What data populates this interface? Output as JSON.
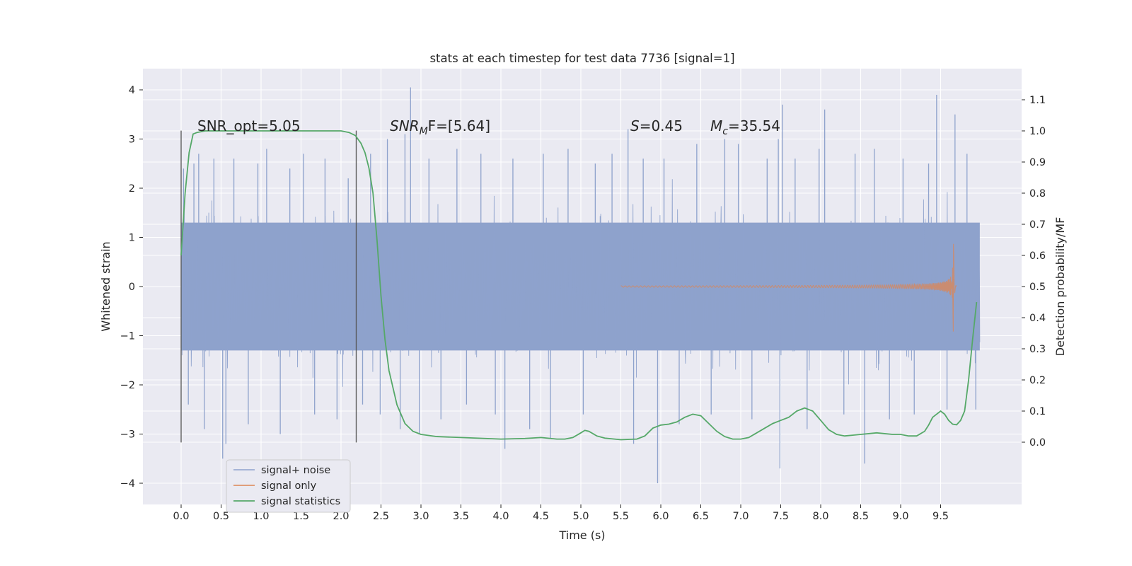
{
  "chart_data": {
    "type": "line",
    "title": "stats at each timestep for test data 7736 [signal=1]",
    "xlabel": "Time (s)",
    "ylabel_left": "Whitened strain",
    "ylabel_right": "Detection probability/MF",
    "xlim": [
      -0.49,
      10.49
    ],
    "ylim_left": [
      -4.45,
      4.45
    ],
    "ylim_right": [
      -0.2,
      1.2
    ],
    "x_ticks": [
      0.0,
      0.5,
      1.0,
      1.5,
      2.0,
      2.5,
      3.0,
      3.5,
      4.0,
      4.5,
      5.0,
      5.5,
      6.0,
      6.5,
      7.0,
      7.5,
      8.0,
      8.5,
      9.0,
      9.5
    ],
    "x_tick_labels": [
      "0.0",
      "0.5",
      "1.0",
      "1.5",
      "2.0",
      "2.5",
      "3.0",
      "3.5",
      "4.0",
      "4.5",
      "5.0",
      "5.5",
      "6.0",
      "6.5",
      "7.0",
      "7.5",
      "8.0",
      "8.5",
      "9.0",
      "9.5"
    ],
    "y_left_ticks": [
      4,
      3,
      2,
      1,
      0,
      -1,
      -2,
      -3,
      -4
    ],
    "y_left_tick_labels": [
      "4",
      "3",
      "2",
      "1",
      "0",
      "−1",
      "−2",
      "−3",
      "−4"
    ],
    "y_right_ticks": [
      1.1,
      1.0,
      0.9,
      0.8,
      0.7,
      0.6,
      0.5,
      0.4,
      0.3,
      0.2,
      0.1,
      0.0
    ],
    "y_right_tick_labels": [
      "1.1",
      "1.0",
      "0.9",
      "0.8",
      "0.7",
      "0.6",
      "0.5",
      "0.4",
      "0.3",
      "0.2",
      "0.1",
      "0.0"
    ],
    "vlines": [
      {
        "x": 0.0,
        "ymin": -3.17,
        "ymax": 3.17
      },
      {
        "x": 2.19,
        "ymin": -3.17,
        "ymax": 3.17
      }
    ],
    "annotations": {
      "snr_opt": "SNR_opt=5.05",
      "snr_mf_base": "SNR",
      "snr_mf_sub": "M",
      "snr_mf_rest": "F=[5.64]",
      "s_name": "S",
      "s_value": "=0.45",
      "mc_name": "M",
      "mc_sub": "c",
      "mc_value": "=35.54"
    },
    "series": [
      {
        "name": "signal+ noise",
        "axis": "left",
        "color": "#8ea2cc",
        "x_range": [
          0.0,
          9.99
        ],
        "core_band": [
          -1.3,
          1.3
        ],
        "spikes": [
          {
            "x": 0.03,
            "y": 2.4
          },
          {
            "x": 0.09,
            "y": -2.4
          },
          {
            "x": 0.16,
            "y": 2.5
          },
          {
            "x": 0.22,
            "y": 2.7
          },
          {
            "x": 0.29,
            "y": -2.9
          },
          {
            "x": 0.41,
            "y": 2.6
          },
          {
            "x": 0.52,
            "y": -3.5
          },
          {
            "x": 0.56,
            "y": -3.2
          },
          {
            "x": 0.66,
            "y": 2.6
          },
          {
            "x": 0.84,
            "y": -2.8
          },
          {
            "x": 0.96,
            "y": 2.5
          },
          {
            "x": 1.07,
            "y": 2.8
          },
          {
            "x": 1.24,
            "y": -3.0
          },
          {
            "x": 1.36,
            "y": 2.4
          },
          {
            "x": 1.53,
            "y": 2.7
          },
          {
            "x": 1.67,
            "y": -2.6
          },
          {
            "x": 1.8,
            "y": 2.6
          },
          {
            "x": 1.95,
            "y": -2.7
          },
          {
            "x": 2.09,
            "y": 2.2
          },
          {
            "x": 2.27,
            "y": -2.4
          },
          {
            "x": 2.37,
            "y": 2.7
          },
          {
            "x": 2.49,
            "y": -2.6
          },
          {
            "x": 2.58,
            "y": 3.0
          },
          {
            "x": 2.74,
            "y": -2.9
          },
          {
            "x": 2.8,
            "y": 3.1
          },
          {
            "x": 2.87,
            "y": 4.05
          },
          {
            "x": 2.98,
            "y": -3.0
          },
          {
            "x": 3.1,
            "y": 2.6
          },
          {
            "x": 3.25,
            "y": -2.7
          },
          {
            "x": 3.45,
            "y": 2.8
          },
          {
            "x": 3.57,
            "y": -2.4
          },
          {
            "x": 3.75,
            "y": 2.7
          },
          {
            "x": 3.93,
            "y": -2.6
          },
          {
            "x": 4.05,
            "y": -3.3
          },
          {
            "x": 4.15,
            "y": 2.6
          },
          {
            "x": 4.36,
            "y": -2.9
          },
          {
            "x": 4.53,
            "y": 2.7
          },
          {
            "x": 4.62,
            "y": -3.1
          },
          {
            "x": 4.84,
            "y": 2.8
          },
          {
            "x": 5.03,
            "y": -2.6
          },
          {
            "x": 5.18,
            "y": 2.5
          },
          {
            "x": 5.39,
            "y": 2.7
          },
          {
            "x": 5.59,
            "y": 3.2
          },
          {
            "x": 5.66,
            "y": -3.2
          },
          {
            "x": 5.78,
            "y": 2.6
          },
          {
            "x": 5.96,
            "y": -4.0
          },
          {
            "x": 6.04,
            "y": 2.6
          },
          {
            "x": 6.23,
            "y": -2.8
          },
          {
            "x": 6.45,
            "y": 2.9
          },
          {
            "x": 6.63,
            "y": -2.6
          },
          {
            "x": 6.8,
            "y": 3.0
          },
          {
            "x": 6.97,
            "y": 2.9
          },
          {
            "x": 7.14,
            "y": -2.7
          },
          {
            "x": 7.33,
            "y": 2.6
          },
          {
            "x": 7.47,
            "y": 3.0
          },
          {
            "x": 7.52,
            "y": 3.7
          },
          {
            "x": 7.49,
            "y": -3.7
          },
          {
            "x": 7.68,
            "y": 2.6
          },
          {
            "x": 7.83,
            "y": -2.9
          },
          {
            "x": 7.98,
            "y": 2.8
          },
          {
            "x": 8.05,
            "y": 3.6
          },
          {
            "x": 8.29,
            "y": -2.6
          },
          {
            "x": 8.43,
            "y": 2.7
          },
          {
            "x": 8.55,
            "y": -3.6
          },
          {
            "x": 8.67,
            "y": 2.8
          },
          {
            "x": 8.86,
            "y": -2.7
          },
          {
            "x": 9.03,
            "y": 2.6
          },
          {
            "x": 9.17,
            "y": -2.6
          },
          {
            "x": 9.35,
            "y": 2.5
          },
          {
            "x": 9.45,
            "y": 3.9
          },
          {
            "x": 9.58,
            "y": -2.5
          },
          {
            "x": 9.68,
            "y": 3.5
          },
          {
            "x": 9.83,
            "y": 2.7
          },
          {
            "x": 9.94,
            "y": -2.5
          }
        ]
      },
      {
        "name": "signal only",
        "axis": "left",
        "color": "#dd8452",
        "chirp": {
          "t_start": 5.5,
          "t_merger": 9.66,
          "t_end": 9.7,
          "peak_amplitude": 1.15,
          "final_sign": -1
        }
      },
      {
        "name": "signal statistics",
        "axis": "right",
        "color": "#55a868",
        "x": [
          0.0,
          0.05,
          0.1,
          0.15,
          0.2,
          0.3,
          0.5,
          1.0,
          1.5,
          1.9,
          2.0,
          2.1,
          2.18,
          2.25,
          2.3,
          2.35,
          2.4,
          2.45,
          2.5,
          2.55,
          2.6,
          2.7,
          2.8,
          2.9,
          3.0,
          3.2,
          3.5,
          4.0,
          4.3,
          4.5,
          4.7,
          4.8,
          4.9,
          5.0,
          5.05,
          5.1,
          5.2,
          5.3,
          5.5,
          5.7,
          5.8,
          5.9,
          6.0,
          6.1,
          6.2,
          6.3,
          6.4,
          6.5,
          6.6,
          6.7,
          6.8,
          6.9,
          7.0,
          7.1,
          7.2,
          7.4,
          7.5,
          7.6,
          7.7,
          7.8,
          7.9,
          8.0,
          8.1,
          8.2,
          8.3,
          8.5,
          8.7,
          8.9,
          9.0,
          9.1,
          9.2,
          9.3,
          9.35,
          9.4,
          9.45,
          9.5,
          9.55,
          9.6,
          9.65,
          9.7,
          9.75,
          9.8,
          9.85,
          9.9,
          9.95
        ],
        "values": [
          0.6,
          0.8,
          0.93,
          0.99,
          0.995,
          1.0,
          1.0,
          1.0,
          1.0,
          1.0,
          1.0,
          0.995,
          0.985,
          0.96,
          0.93,
          0.88,
          0.8,
          0.65,
          0.47,
          0.33,
          0.23,
          0.12,
          0.06,
          0.035,
          0.025,
          0.018,
          0.015,
          0.01,
          0.012,
          0.015,
          0.01,
          0.01,
          0.015,
          0.03,
          0.038,
          0.035,
          0.02,
          0.013,
          0.008,
          0.01,
          0.02,
          0.045,
          0.055,
          0.058,
          0.065,
          0.08,
          0.09,
          0.085,
          0.06,
          0.035,
          0.018,
          0.01,
          0.01,
          0.015,
          0.03,
          0.06,
          0.07,
          0.08,
          0.1,
          0.11,
          0.1,
          0.07,
          0.04,
          0.025,
          0.02,
          0.025,
          0.03,
          0.025,
          0.025,
          0.02,
          0.02,
          0.035,
          0.055,
          0.08,
          0.09,
          0.1,
          0.09,
          0.07,
          0.058,
          0.056,
          0.07,
          0.1,
          0.2,
          0.33,
          0.45
        ]
      }
    ],
    "legend": {
      "placement": "lower-left",
      "entries": [
        "signal+ noise",
        "signal only",
        "signal statistics"
      ]
    },
    "grid": true,
    "background": "#eaeaf2"
  }
}
